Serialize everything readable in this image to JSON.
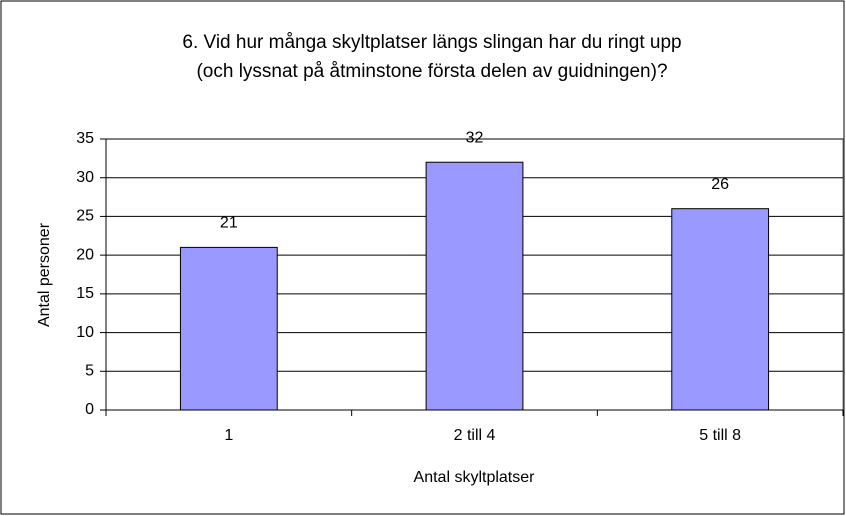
{
  "chart_data": {
    "type": "bar",
    "title": [
      "6. Vid hur många skyltplatser längs slingan har du ringt upp",
      "(och lyssnat på åtminstone första delen av guidningen)?"
    ],
    "x_label": "Antal skyltplatser",
    "y_label": "Antal personer",
    "categories": [
      "1",
      "2 till 4",
      "5 till 8"
    ],
    "values": [
      21,
      32,
      26
    ],
    "color": "#9999ff",
    "ylim": [
      0,
      35
    ],
    "yticks": [
      0,
      5,
      10,
      15,
      20,
      25,
      30,
      35
    ],
    "grid": true
  }
}
